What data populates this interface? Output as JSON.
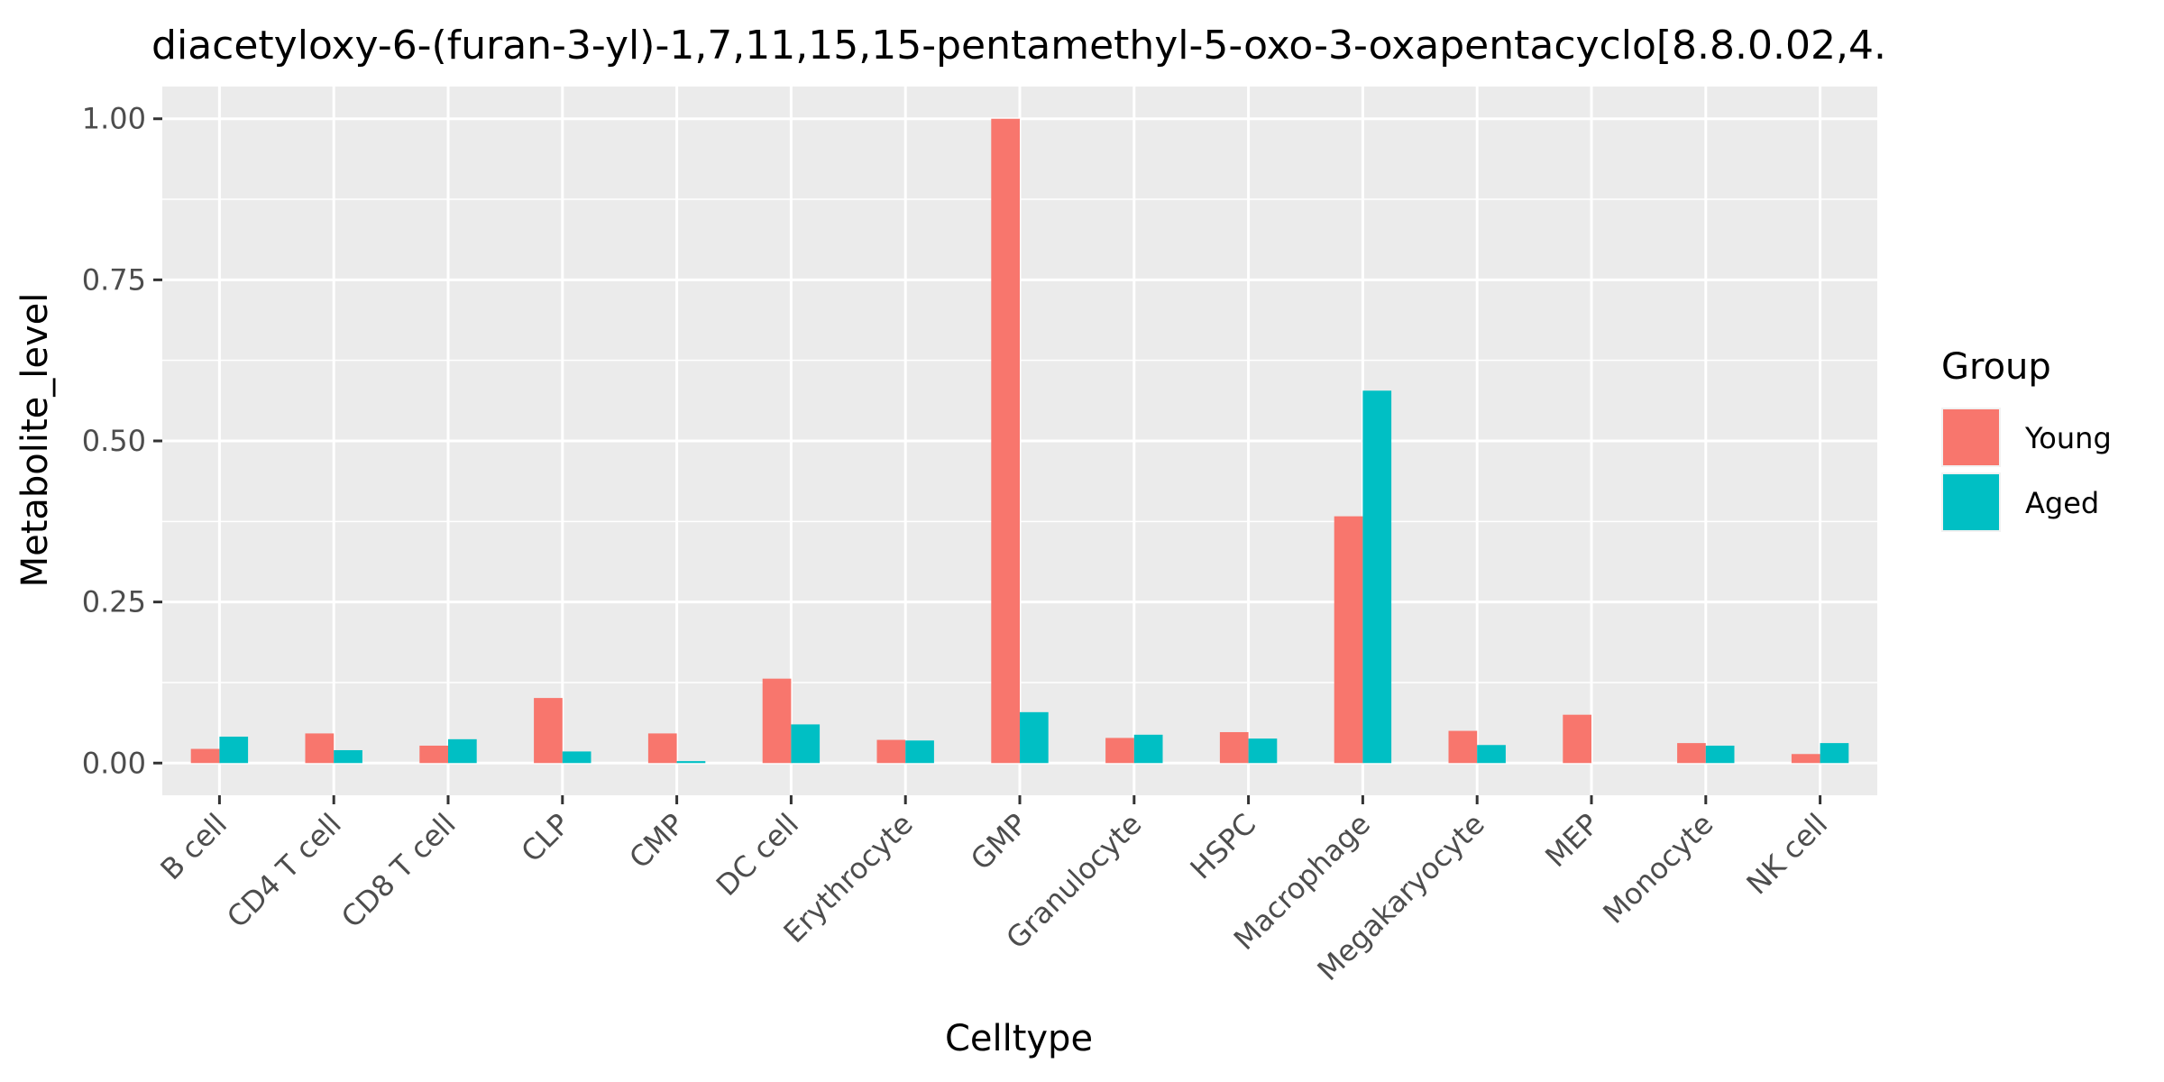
{
  "chart_data": {
    "type": "bar",
    "title": "diacetyloxy-6-(furan-3-yl)-1,7,11,15,15-pentamethyl-5-oxo-3-oxapentacyclo[8.8.0.02,4.",
    "xlabel": "Celltype",
    "ylabel": "Metabolite_level",
    "categories": [
      "B cell",
      "CD4 T cell",
      "CD8 T cell",
      "CLP",
      "CMP",
      "DC cell",
      "Erythrocyte",
      "GMP",
      "Granulocyte",
      "HSPC",
      "Macrophage",
      "Megakaryocyte",
      "MEP",
      "Monocyte",
      "NK cell"
    ],
    "series": [
      {
        "name": "Young",
        "color": "#F8766D",
        "values": [
          0.022,
          0.046,
          0.027,
          0.101,
          0.046,
          0.131,
          0.036,
          1.0,
          0.039,
          0.048,
          0.383,
          0.05,
          0.075,
          0.031,
          0.014
        ]
      },
      {
        "name": "Aged",
        "color": "#00BFC4",
        "values": [
          0.041,
          0.02,
          0.037,
          0.018,
          0.003,
          0.06,
          0.035,
          0.079,
          0.044,
          0.038,
          0.578,
          0.028,
          0.0,
          0.027,
          0.031
        ]
      }
    ],
    "ylim": [
      -0.05,
      1.05
    ],
    "yticks": [
      0.0,
      0.25,
      0.5,
      0.75,
      1.0
    ],
    "ytick_labels": [
      "0.00",
      "0.25",
      "0.50",
      "0.75",
      "1.00"
    ],
    "legend": {
      "title": "Group",
      "position": "right"
    },
    "grid": true,
    "panel_color": "#EBEBEB",
    "grid_color": "#FFFFFF"
  }
}
